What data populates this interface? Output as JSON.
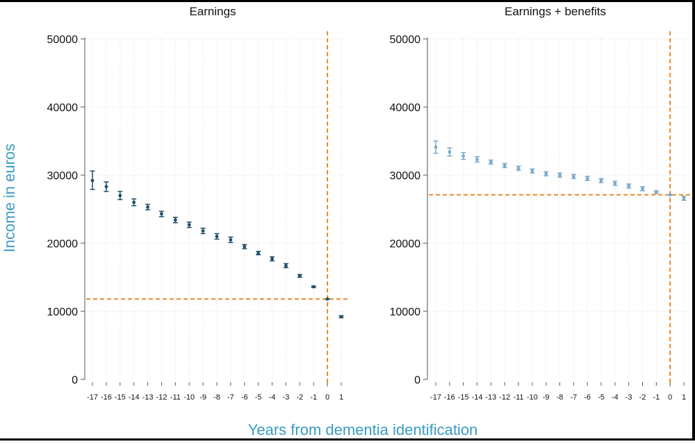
{
  "figure": {
    "ylabel": "Income in euros",
    "xlabel": "Years from dementia identification"
  },
  "colors": {
    "panel1_series": "#1f4e66",
    "panel2_series": "#7aa9c9",
    "reference": "#e8892a",
    "grid": "#d8d8d8",
    "axis_label": "#3a9bc1"
  },
  "chart_data": [
    {
      "type": "scatter",
      "title": "Earnings",
      "x": [
        -17,
        -16,
        -15,
        -14,
        -13,
        -12,
        -11,
        -10,
        -9,
        -8,
        -7,
        -6,
        -5,
        -4,
        -3,
        -2,
        -1,
        0,
        1
      ],
      "x_tick_labels": [
        "-17",
        "-16",
        "-15",
        "-14",
        "-13",
        "-12",
        "-11",
        "-10",
        "-9",
        "-8",
        "-7",
        "-6",
        "-5",
        "-4",
        "-3",
        "-2",
        "-1",
        "0",
        "1"
      ],
      "y": [
        29200,
        28300,
        27000,
        26000,
        25300,
        24300,
        23400,
        22700,
        21800,
        21000,
        20500,
        19500,
        18500,
        17700,
        16700,
        15200,
        13600,
        11800,
        9200
      ],
      "ci_low": [
        27900,
        27600,
        26400,
        25500,
        24900,
        23900,
        23000,
        22300,
        21400,
        20600,
        20100,
        19200,
        18300,
        17400,
        16400,
        15000,
        13500,
        11800,
        9050
      ],
      "ci_high": [
        30600,
        29000,
        27600,
        26500,
        25700,
        24700,
        23800,
        23100,
        22200,
        21400,
        20900,
        19800,
        18800,
        18000,
        17000,
        15400,
        13700,
        11800,
        9350
      ],
      "ylim": [
        0,
        50000
      ],
      "y_ticks": [
        "0",
        "10000",
        "20000",
        "30000",
        "40000",
        "50000"
      ],
      "hline": 11800,
      "vline": 0,
      "grid": true
    },
    {
      "type": "scatter",
      "title": "Earnings + benefits",
      "x": [
        -17,
        -16,
        -15,
        -14,
        -13,
        -12,
        -11,
        -10,
        -9,
        -8,
        -7,
        -6,
        -5,
        -4,
        -3,
        -2,
        -1,
        0,
        1
      ],
      "x_tick_labels": [
        "-17",
        "-16",
        "-15",
        "-14",
        "-13",
        "-12",
        "-11",
        "-10",
        "-9",
        "-8",
        "-7",
        "-6",
        "-5",
        "-4",
        "-3",
        "-2",
        "-1",
        "0",
        "1"
      ],
      "y": [
        34100,
        33400,
        32800,
        32300,
        31900,
        31400,
        31000,
        30600,
        30200,
        30000,
        29800,
        29500,
        29200,
        28800,
        28400,
        28000,
        27500,
        27100,
        26600
      ],
      "ci_low": [
        33200,
        32800,
        32300,
        31900,
        31600,
        31100,
        30700,
        30300,
        29900,
        29700,
        29500,
        29200,
        28900,
        28500,
        28100,
        27700,
        27300,
        27100,
        26300
      ],
      "ci_high": [
        35000,
        34000,
        33300,
        32700,
        32200,
        31700,
        31300,
        30900,
        30500,
        30300,
        30100,
        29800,
        29500,
        29100,
        28700,
        28300,
        27700,
        27100,
        26900
      ],
      "ylim": [
        0,
        50000
      ],
      "y_ticks": [
        "0",
        "10000",
        "20000",
        "30000",
        "40000",
        "50000"
      ],
      "hline": 27100,
      "vline": 0,
      "grid": true
    }
  ]
}
